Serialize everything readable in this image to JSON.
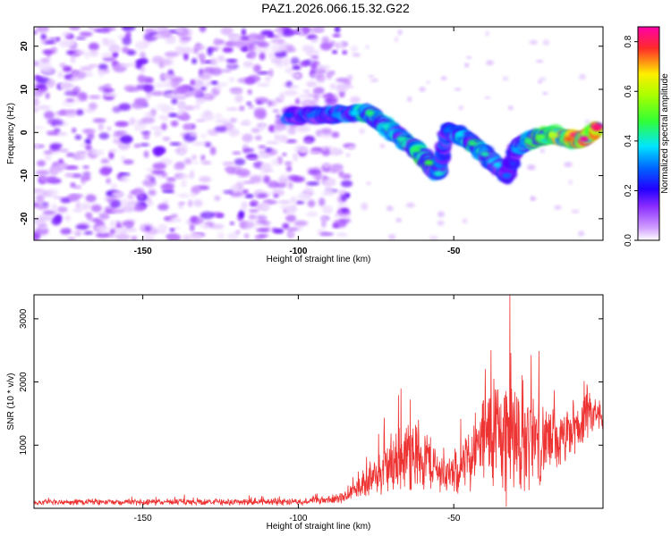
{
  "page": {
    "title": "PAZ1.2026.066.15.32.G22"
  },
  "colors": {
    "snr_line": "#ee3333",
    "colormap": [
      "#ffffff",
      "#cf9cff",
      "#9b3cff",
      "#5a00ff",
      "#0033ff",
      "#00ddff",
      "#33ff33",
      "#ffff00",
      "#ff2222",
      "#ff00aa"
    ]
  },
  "chart_data": [
    {
      "type": "heatmap",
      "title": "PAZ1.2026.066.15.32.G22",
      "xlabel": "Height of straight line (km)",
      "ylabel": "Frequency (Hz)",
      "xlim": [
        -185,
        -2
      ],
      "ylim": [
        -25,
        24.5
      ],
      "xticks": [
        -150,
        -100,
        -50
      ],
      "xticklabels": [
        "-150",
        "-100",
        "-50"
      ],
      "yticks": [
        -20,
        -10,
        0,
        10,
        20
      ],
      "yticklabels": [
        "-20",
        "-10",
        "0",
        "10",
        "20"
      ],
      "noise_region_x": [
        -185,
        -84
      ],
      "signal_ridge": [
        {
          "x": -103,
          "f": 4.0,
          "amp": 0.3
        },
        {
          "x": -96,
          "f": 4.0,
          "amp": 0.32
        },
        {
          "x": -88,
          "f": 4.0,
          "amp": 0.34
        },
        {
          "x": -82,
          "f": 4.5,
          "amp": 0.38
        },
        {
          "x": -77,
          "f": 4.5,
          "amp": 0.45
        },
        {
          "x": -72,
          "f": 1.5,
          "amp": 0.4
        },
        {
          "x": -67,
          "f": -1.5,
          "amp": 0.42
        },
        {
          "x": -62,
          "f": -4.0,
          "amp": 0.46
        },
        {
          "x": -58,
          "f": -7.0,
          "amp": 0.48
        },
        {
          "x": -55,
          "f": -9.5,
          "amp": 0.4
        },
        {
          "x": -52,
          "f": 0.5,
          "amp": 0.32
        },
        {
          "x": -48,
          "f": -0.5,
          "amp": 0.38
        },
        {
          "x": -44,
          "f": -2.5,
          "amp": 0.45
        },
        {
          "x": -40,
          "f": -5.0,
          "amp": 0.42
        },
        {
          "x": -36,
          "f": -7.5,
          "amp": 0.38
        },
        {
          "x": -33,
          "f": -10.0,
          "amp": 0.32
        },
        {
          "x": -30,
          "f": -4.0,
          "amp": 0.35
        },
        {
          "x": -26,
          "f": -2.0,
          "amp": 0.45
        },
        {
          "x": -22,
          "f": -1.0,
          "amp": 0.52
        },
        {
          "x": -18,
          "f": -0.5,
          "amp": 0.6
        },
        {
          "x": -13,
          "f": -1.5,
          "amp": 0.75
        },
        {
          "x": -8,
          "f": -1.5,
          "amp": 0.85
        },
        {
          "x": -4,
          "f": 1.0,
          "amp": 0.82
        }
      ],
      "colorbar": {
        "label": "Normalized spectral amplitude",
        "range": [
          0,
          0.86
        ],
        "ticks": [
          0.0,
          0.2,
          0.4,
          0.6,
          0.8
        ],
        "ticklabels": [
          "0.0",
          "0.2",
          "0.4",
          "0.6",
          "0.8"
        ]
      }
    },
    {
      "type": "line",
      "xlabel": "Height of straight line (km)",
      "ylabel": "SNR (10 * v/v)",
      "xlim": [
        -185,
        -2
      ],
      "ylim": [
        0,
        3380
      ],
      "xticks": [
        -150,
        -100,
        -50
      ],
      "xticklabels": [
        "-150",
        "-100",
        "-50"
      ],
      "yticks": [
        1000,
        2000,
        3000
      ],
      "yticklabels": [
        "1000",
        "2000",
        "3000"
      ],
      "envelope": {
        "x": [
          -185,
          -160,
          -140,
          -120,
          -100,
          -90,
          -85,
          -80,
          -75,
          -70,
          -65,
          -60,
          -55,
          -50,
          -45,
          -40,
          -35,
          -30,
          -25,
          -20,
          -15,
          -10,
          -5,
          -2
        ],
        "mean": [
          90,
          100,
          100,
          100,
          110,
          130,
          170,
          380,
          500,
          700,
          850,
          850,
          600,
          500,
          800,
          1100,
          1200,
          1150,
          1100,
          1050,
          1050,
          1300,
          1500,
          1400
        ],
        "spread": [
          50,
          60,
          60,
          60,
          70,
          80,
          120,
          250,
          350,
          600,
          700,
          700,
          400,
          350,
          600,
          900,
          1200,
          1300,
          900,
          700,
          500,
          500,
          400,
          200
        ]
      }
    }
  ]
}
